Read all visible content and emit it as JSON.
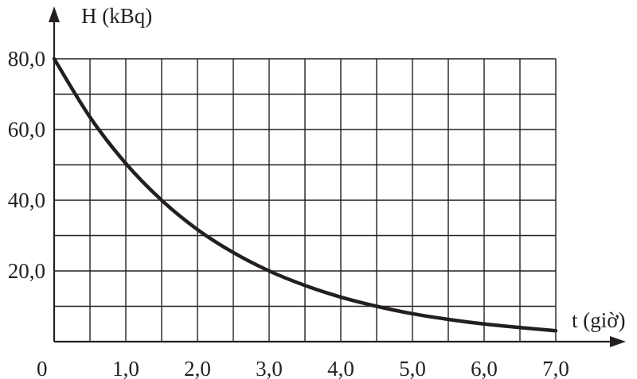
{
  "chart_data": {
    "type": "line",
    "xlabel": "t (giờ)",
    "ylabel": "H (kBq)",
    "origin_label": "0",
    "xlim": [
      0,
      7
    ],
    "ylim": [
      0,
      80
    ],
    "x_ticks": [
      1,
      2,
      3,
      4,
      5,
      6,
      7
    ],
    "x_tick_labels": [
      "1,0",
      "2,0",
      "3,0",
      "4,0",
      "5,0",
      "6,0",
      "7,0"
    ],
    "y_ticks": [
      20,
      40,
      60,
      80
    ],
    "y_tick_labels": [
      "20,0",
      "40,0",
      "60,0",
      "80,0"
    ],
    "grid": {
      "x_step": 0.5,
      "y_step": 10
    },
    "series": [
      {
        "x": [
          0,
          0.5,
          1,
          1.5,
          2,
          2.5,
          3,
          3.5,
          4,
          4.5,
          5,
          5.5,
          6,
          6.5,
          7
        ],
        "values": [
          80.0,
          63.5,
          50.4,
          40.0,
          31.7,
          25.2,
          20.0,
          15.9,
          12.6,
          10.0,
          7.9,
          6.3,
          5.0,
          4.0,
          3.1
        ]
      }
    ],
    "colors": {
      "ink": "#231f20"
    }
  }
}
